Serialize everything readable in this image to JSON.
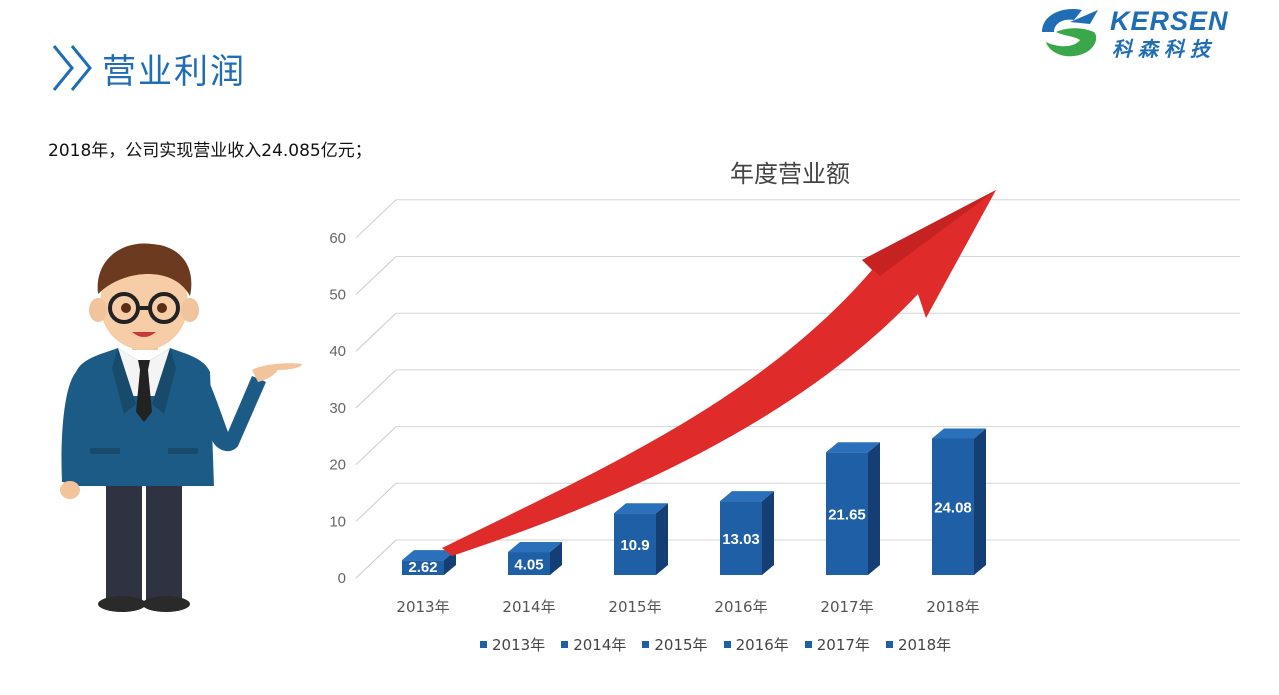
{
  "header": {
    "title": "营业利润"
  },
  "logo": {
    "name_en": "KERSEN",
    "name_cn": "科森科技"
  },
  "summary_text": "2018年，公司实现营业收入24.085亿元；",
  "colors": {
    "bar_front": "#1f5fa6",
    "bar_side": "#153f74",
    "bar_top": "#2a70bb",
    "arrow": "#e02b2b",
    "accent": "#1f6eb5"
  },
  "chart_data": {
    "type": "bar",
    "title": "年度营业额",
    "categories": [
      "2013年",
      "2014年",
      "2015年",
      "2016年",
      "2017年",
      "2018年"
    ],
    "values": [
      2.62,
      4.05,
      10.9,
      13.03,
      21.65,
      24.08
    ],
    "data_labels": [
      "2.62",
      "4.05",
      "10.9",
      "13.03",
      "21.65",
      "24.08"
    ],
    "ylim": [
      0,
      60
    ],
    "yticks": [
      "0",
      "10",
      "20",
      "30",
      "40",
      "50",
      "60"
    ],
    "grid": true,
    "legend_position": "bottom",
    "legend": [
      "2013年",
      "2014年",
      "2015年",
      "2016年",
      "2017年",
      "2018年"
    ],
    "xlabel": "",
    "ylabel": ""
  }
}
